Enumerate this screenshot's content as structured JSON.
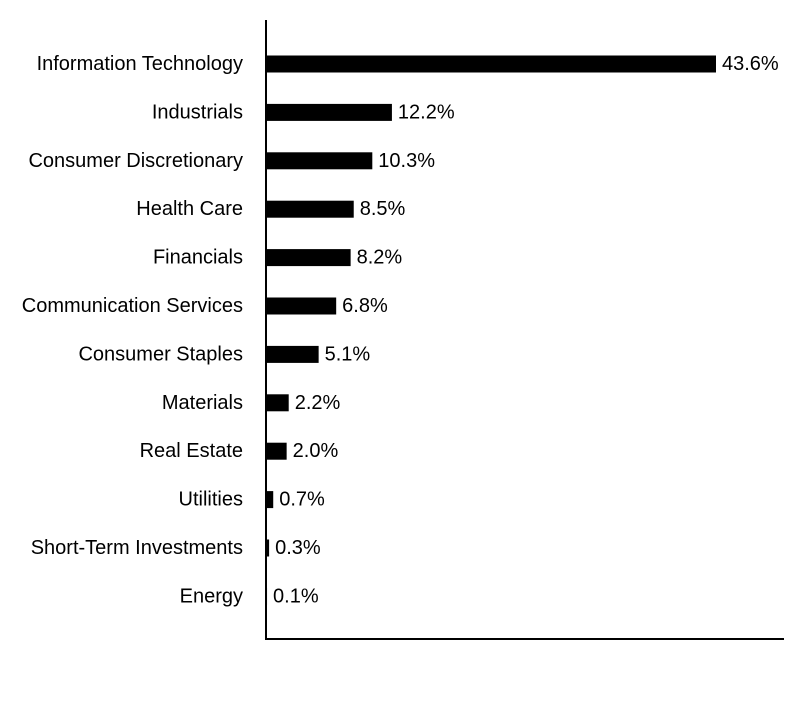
{
  "chart_data": {
    "type": "bar",
    "orientation": "horizontal",
    "title": "",
    "xlabel": "",
    "ylabel": "",
    "grid": false,
    "legend": "none",
    "xlim": [
      0,
      50
    ],
    "bar_color": "#000000",
    "categories": [
      "Information Technology",
      "Industrials",
      "Consumer Discretionary",
      "Health Care",
      "Financials",
      "Communication Services",
      "Consumer Staples",
      "Materials",
      "Real Estate",
      "Utilities",
      "Short-Term Investments",
      "Energy"
    ],
    "values": [
      43.6,
      12.2,
      10.3,
      8.5,
      8.2,
      6.8,
      5.1,
      2.2,
      2.0,
      0.7,
      0.3,
      0.1
    ],
    "value_labels": [
      "43.6%",
      "12.2%",
      "10.3%",
      "8.5%",
      "8.2%",
      "6.8%",
      "5.1%",
      "2.2%",
      "2.0%",
      "0.7%",
      "0.3%",
      "0.1%"
    ]
  }
}
